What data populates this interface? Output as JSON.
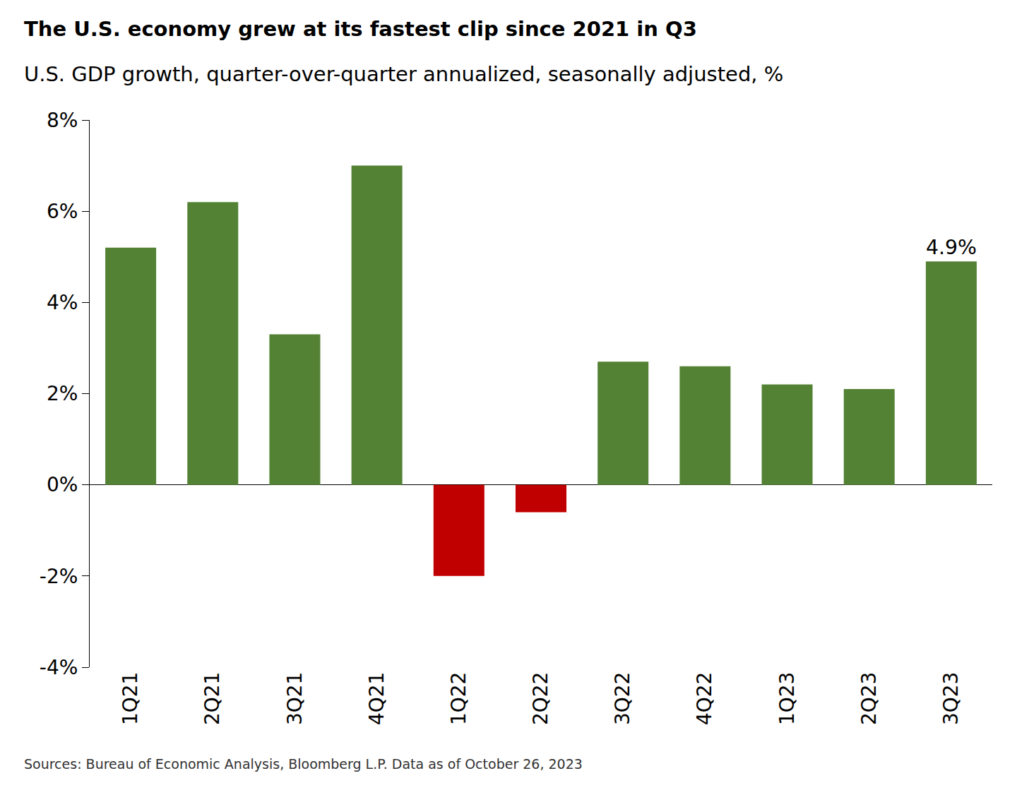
{
  "chart_data": {
    "type": "bar",
    "title": "The U.S. economy grew at its fastest clip since 2021 in Q3",
    "subtitle": "U.S. GDP growth, quarter-over-quarter annualized, seasonally adjusted, %",
    "source": "Sources: Bureau of Economic Analysis, Bloomberg L.P. Data as of October 26, 2023",
    "categories": [
      "1Q21",
      "2Q21",
      "3Q21",
      "4Q21",
      "1Q22",
      "2Q22",
      "3Q22",
      "4Q22",
      "1Q23",
      "2Q23",
      "3Q23"
    ],
    "values": [
      5.2,
      6.2,
      3.3,
      7.0,
      -2.0,
      -0.6,
      2.7,
      2.6,
      2.2,
      2.1,
      4.9
    ],
    "value_labels": [
      null,
      null,
      null,
      null,
      null,
      null,
      null,
      null,
      null,
      null,
      "4.9%"
    ],
    "data_labels": true,
    "colors": [
      "#548235",
      "#548235",
      "#548235",
      "#548235",
      "#c00000",
      "#c00000",
      "#548235",
      "#548235",
      "#548235",
      "#548235",
      "#548235"
    ],
    "ylim": [
      -4,
      8
    ],
    "yticks": [
      {
        "value": -4,
        "label": "-4%"
      },
      {
        "value": -2,
        "label": "-2%"
      },
      {
        "value": 0,
        "label": "0%"
      },
      {
        "value": 2,
        "label": "2%"
      },
      {
        "value": 4,
        "label": "4%"
      },
      {
        "value": 6,
        "label": "6%"
      },
      {
        "value": 8,
        "label": "8%"
      }
    ],
    "grid": false
  }
}
